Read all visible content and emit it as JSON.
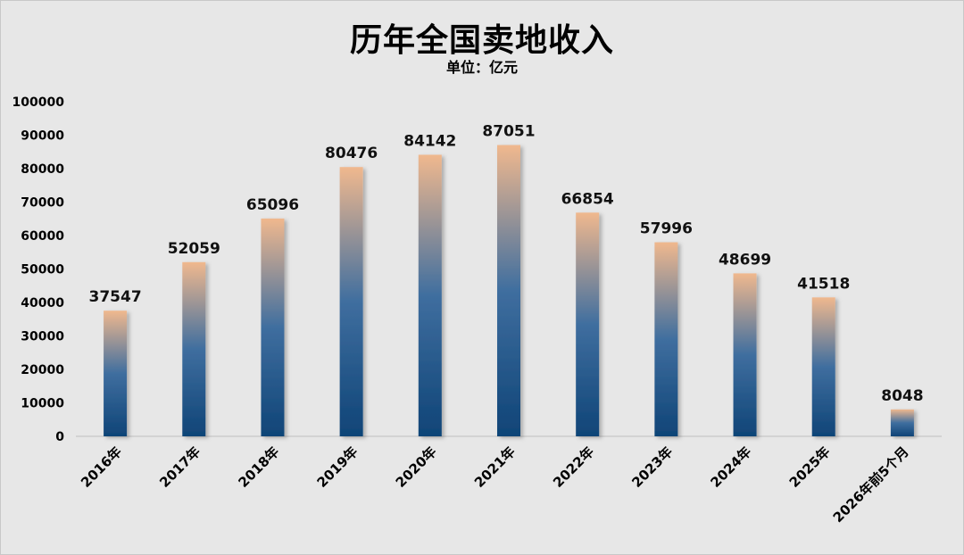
{
  "chart_data": {
    "type": "bar",
    "title": "历年全国卖地收入",
    "subtitle": "单位：亿元",
    "xlabel": "",
    "ylabel": "",
    "ylim": [
      0,
      100000
    ],
    "yticks": [
      0,
      10000,
      20000,
      30000,
      40000,
      50000,
      60000,
      70000,
      80000,
      90000,
      100000
    ],
    "categories": [
      "2016年",
      "2017年",
      "2018年",
      "2019年",
      "2020年",
      "2021年",
      "2022年",
      "2023年",
      "2024年",
      "2025年",
      "2026年前5个月"
    ],
    "values": [
      37547,
      52059,
      65096,
      80476,
      84142,
      87051,
      66854,
      57996,
      48699,
      41518,
      8048
    ],
    "grid": false,
    "legend": "none",
    "colors": {
      "bar_top": "#f0b88e",
      "bar_mid": "#3f6e9f",
      "bar_bottom": "#0f4477",
      "background": "#e7e7e7",
      "axis": "#bfbfbf"
    }
  }
}
